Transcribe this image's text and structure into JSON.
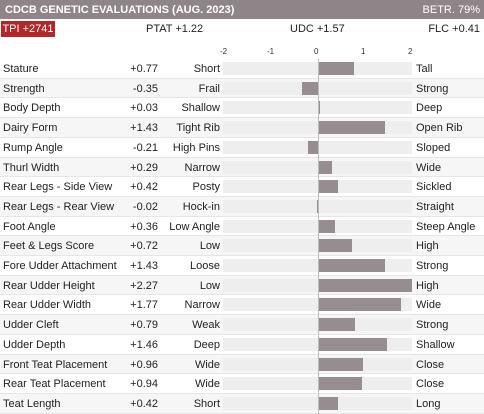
{
  "header": {
    "title": "CDCB GENETIC EVALUATIONS (AUG. 2023)",
    "reliability": "BETR. 79%"
  },
  "summary": {
    "tpi": "TPI +2741",
    "ptat": "PTAT +1.22",
    "udc": "UDC +1.57",
    "flc": "FLC +0.41"
  },
  "chart_data": {
    "type": "bar",
    "orientation": "horizontal",
    "xlim": [
      -2,
      2
    ],
    "x_ticks": [
      "-2",
      "-1",
      "0",
      "1",
      "2"
    ],
    "rows": [
      {
        "trait": "Stature",
        "value": 0.77,
        "label": "+0.77",
        "low": "Short",
        "high": "Tall"
      },
      {
        "trait": "Strength",
        "value": -0.35,
        "label": "-0.35",
        "low": "Frail",
        "high": "Strong"
      },
      {
        "trait": "Body Depth",
        "value": 0.03,
        "label": "+0.03",
        "low": "Shallow",
        "high": "Deep"
      },
      {
        "trait": "Dairy Form",
        "value": 1.43,
        "label": "+1.43",
        "low": "Tight Rib",
        "high": "Open Rib"
      },
      {
        "trait": "Rump Angle",
        "value": -0.21,
        "label": "-0.21",
        "low": "High Pins",
        "high": "Sloped"
      },
      {
        "trait": "Thurl Width",
        "value": 0.29,
        "label": "+0.29",
        "low": "Narrow",
        "high": "Wide"
      },
      {
        "trait": "Rear Legs - Side View",
        "value": 0.42,
        "label": "+0.42",
        "low": "Posty",
        "high": "Sickled"
      },
      {
        "trait": "Rear Legs - Rear View",
        "value": -0.02,
        "label": "-0.02",
        "low": "Hock-in",
        "high": "Straight"
      },
      {
        "trait": "Foot Angle",
        "value": 0.36,
        "label": "+0.36",
        "low": "Low Angle",
        "high": "Steep Angle"
      },
      {
        "trait": "Feet & Legs Score",
        "value": 0.72,
        "label": "+0.72",
        "low": "Low",
        "high": "High"
      },
      {
        "trait": "Fore Udder Attachment",
        "value": 1.43,
        "label": "+1.43",
        "low": "Loose",
        "high": "Strong"
      },
      {
        "trait": "Rear Udder Height",
        "value": 2.27,
        "label": "+2.27",
        "low": "Low",
        "high": "High"
      },
      {
        "trait": "Rear Udder Width",
        "value": 1.77,
        "label": "+1.77",
        "low": "Narrow",
        "high": "Wide"
      },
      {
        "trait": "Udder Cleft",
        "value": 0.79,
        "label": "+0.79",
        "low": "Weak",
        "high": "Strong"
      },
      {
        "trait": "Udder Depth",
        "value": 1.46,
        "label": "+1.46",
        "low": "Deep",
        "high": "Shallow"
      },
      {
        "trait": "Front Teat Placement",
        "value": 0.96,
        "label": "+0.96",
        "low": "Wide",
        "high": "Close"
      },
      {
        "trait": "Rear Teat Placement",
        "value": 0.94,
        "label": "+0.94",
        "low": "Wide",
        "high": "Close"
      },
      {
        "trait": "Teat Length",
        "value": 0.42,
        "label": "+0.42",
        "low": "Short",
        "high": "Long"
      }
    ]
  }
}
